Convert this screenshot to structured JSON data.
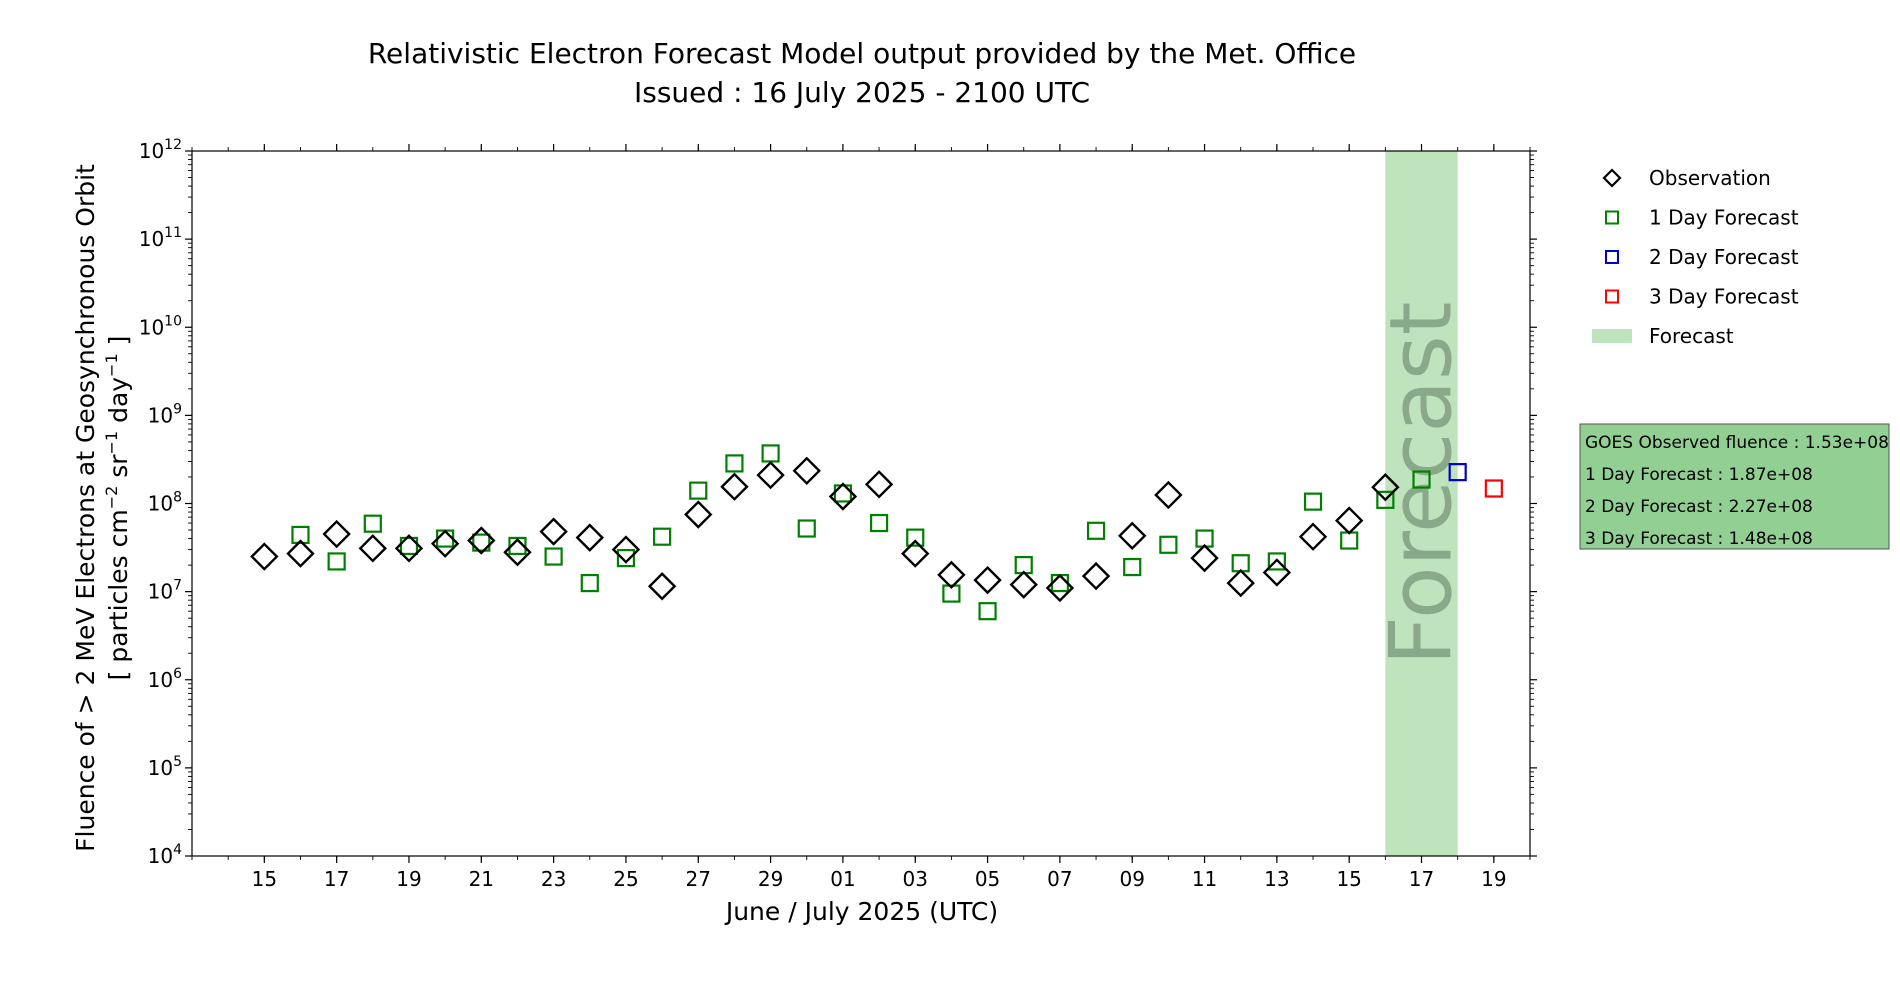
{
  "chart_data": {
    "type": "scatter",
    "title": "Relativistic Electron Forecast Model output provided by the Met. Office",
    "subtitle": "Issued : 16 July 2025 - 2100 UTC",
    "xlabel": "June / July 2025 (UTC)",
    "ylabel_line1": "Fluence of > 2 MeV Electrons at Geosynchronous Orbit",
    "ylabel_line2_parts": [
      "[ particles cm",
      "−2",
      " sr",
      "−1",
      " day",
      "−1",
      " ]"
    ],
    "yscale": "log",
    "ylim_exponent": [
      4,
      12
    ],
    "ytick_base": "10",
    "ytick_exponents": [
      "4",
      "5",
      "6",
      "7",
      "8",
      "9",
      "10",
      "11",
      "12"
    ],
    "xlim": [
      "2025-06-13",
      "2025-07-20"
    ],
    "xtick_dates": [
      "2025-06-15",
      "2025-06-17",
      "2025-06-19",
      "2025-06-21",
      "2025-06-23",
      "2025-06-25",
      "2025-06-27",
      "2025-06-29",
      "2025-07-01",
      "2025-07-03",
      "2025-07-05",
      "2025-07-07",
      "2025-07-09",
      "2025-07-11",
      "2025-07-13",
      "2025-07-15",
      "2025-07-17",
      "2025-07-19"
    ],
    "xtick_labels": [
      "15",
      "17",
      "19",
      "21",
      "23",
      "25",
      "27",
      "29",
      "01",
      "03",
      "05",
      "07",
      "09",
      "11",
      "13",
      "15",
      "17",
      "19"
    ],
    "forecast_band": {
      "start": "2025-07-16",
      "end": "2025-07-18",
      "label": "Forecast",
      "color": "#bfe3bd",
      "label_color": "#8aa88a"
    },
    "series": [
      {
        "name": "Observation",
        "marker": "diamond",
        "color": "#000000",
        "points": [
          {
            "x": "2025-06-15",
            "y": 25000000.0
          },
          {
            "x": "2025-06-16",
            "y": 27000000.0
          },
          {
            "x": "2025-06-17",
            "y": 45000000.0
          },
          {
            "x": "2025-06-18",
            "y": 31000000.0
          },
          {
            "x": "2025-06-19",
            "y": 31000000.0
          },
          {
            "x": "2025-06-20",
            "y": 35000000.0
          },
          {
            "x": "2025-06-21",
            "y": 38000000.0
          },
          {
            "x": "2025-06-22",
            "y": 28000000.0
          },
          {
            "x": "2025-06-23",
            "y": 48000000.0
          },
          {
            "x": "2025-06-24",
            "y": 41000000.0
          },
          {
            "x": "2025-06-25",
            "y": 30000000.0
          },
          {
            "x": "2025-06-26",
            "y": 11500000.0
          },
          {
            "x": "2025-06-27",
            "y": 75000000.0
          },
          {
            "x": "2025-06-28",
            "y": 155000000.0
          },
          {
            "x": "2025-06-29",
            "y": 210000000.0
          },
          {
            "x": "2025-06-30",
            "y": 235000000.0
          },
          {
            "x": "2025-07-01",
            "y": 120000000.0
          },
          {
            "x": "2025-07-02",
            "y": 165000000.0
          },
          {
            "x": "2025-07-03",
            "y": 27000000.0
          },
          {
            "x": "2025-07-04",
            "y": 15500000.0
          },
          {
            "x": "2025-07-05",
            "y": 13500000.0
          },
          {
            "x": "2025-07-06",
            "y": 12000000.0
          },
          {
            "x": "2025-07-07",
            "y": 11000000.0
          },
          {
            "x": "2025-07-08",
            "y": 15000000.0
          },
          {
            "x": "2025-07-09",
            "y": 43000000.0
          },
          {
            "x": "2025-07-10",
            "y": 125000000.0
          },
          {
            "x": "2025-07-11",
            "y": 24000000.0
          },
          {
            "x": "2025-07-12",
            "y": 12500000.0
          },
          {
            "x": "2025-07-13",
            "y": 16500000.0
          },
          {
            "x": "2025-07-14",
            "y": 42000000.0
          },
          {
            "x": "2025-07-15",
            "y": 64000000.0
          },
          {
            "x": "2025-07-16",
            "y": 153000000.0
          }
        ]
      },
      {
        "name": "1 Day Forecast",
        "marker": "square",
        "color": "#008000",
        "points": [
          {
            "x": "2025-06-16",
            "y": 44000000.0
          },
          {
            "x": "2025-06-17",
            "y": 22000000.0
          },
          {
            "x": "2025-06-18",
            "y": 59000000.0
          },
          {
            "x": "2025-06-19",
            "y": 33000000.0
          },
          {
            "x": "2025-06-20",
            "y": 40000000.0
          },
          {
            "x": "2025-06-21",
            "y": 36000000.0
          },
          {
            "x": "2025-06-22",
            "y": 33000000.0
          },
          {
            "x": "2025-06-23",
            "y": 25000000.0
          },
          {
            "x": "2025-06-24",
            "y": 12500000.0
          },
          {
            "x": "2025-06-25",
            "y": 24000000.0
          },
          {
            "x": "2025-06-26",
            "y": 42000000.0
          },
          {
            "x": "2025-06-27",
            "y": 140000000.0
          },
          {
            "x": "2025-06-28",
            "y": 285000000.0
          },
          {
            "x": "2025-06-29",
            "y": 370000000.0
          },
          {
            "x": "2025-06-30",
            "y": 52000000.0
          },
          {
            "x": "2025-07-01",
            "y": 130000000.0
          },
          {
            "x": "2025-07-02",
            "y": 60000000.0
          },
          {
            "x": "2025-07-03",
            "y": 41000000.0
          },
          {
            "x": "2025-07-04",
            "y": 9500000.0
          },
          {
            "x": "2025-07-05",
            "y": 6000000.0
          },
          {
            "x": "2025-07-06",
            "y": 20000000.0
          },
          {
            "x": "2025-07-07",
            "y": 12500000.0
          },
          {
            "x": "2025-07-08",
            "y": 49000000.0
          },
          {
            "x": "2025-07-09",
            "y": 19000000.0
          },
          {
            "x": "2025-07-10",
            "y": 34000000.0
          },
          {
            "x": "2025-07-11",
            "y": 40000000.0
          },
          {
            "x": "2025-07-12",
            "y": 21000000.0
          },
          {
            "x": "2025-07-13",
            "y": 22000000.0
          },
          {
            "x": "2025-07-14",
            "y": 105000000.0
          },
          {
            "x": "2025-07-15",
            "y": 38000000.0
          },
          {
            "x": "2025-07-16",
            "y": 110000000.0
          },
          {
            "x": "2025-07-17",
            "y": 187000000.0
          }
        ]
      },
      {
        "name": "2 Day Forecast",
        "marker": "square",
        "color": "#0000cc",
        "points": [
          {
            "x": "2025-07-18",
            "y": 227000000.0
          }
        ]
      },
      {
        "name": "3 Day Forecast",
        "marker": "square",
        "color": "#ff0000",
        "points": [
          {
            "x": "2025-07-19",
            "y": 148000000.0
          }
        ]
      }
    ],
    "legend": {
      "placement": "right",
      "entries": [
        {
          "label": "Observation",
          "marker": "diamond",
          "color": "#000000"
        },
        {
          "label": "1 Day Forecast",
          "marker": "square",
          "color": "#008000"
        },
        {
          "label": "2 Day Forecast",
          "marker": "square",
          "color": "#0000cc"
        },
        {
          "label": "3 Day Forecast",
          "marker": "square",
          "color": "#ff0000"
        },
        {
          "label": "Forecast",
          "marker": "patch",
          "color": "#bfe3bd"
        }
      ]
    },
    "info_box": {
      "background": "#92cf92",
      "lines": [
        "GOES Observed fluence : 1.53e+08",
        "1 Day Forecast : 1.87e+08",
        "2 Day Forecast : 2.27e+08",
        "3 Day Forecast : 1.48e+08"
      ]
    }
  }
}
